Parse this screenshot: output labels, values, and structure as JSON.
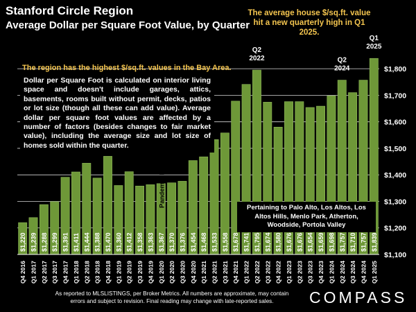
{
  "header": {
    "title": "Stanford Circle Region",
    "subtitle": "Average Dollar per Square Foot Value, by Quarter"
  },
  "notes": {
    "top_right": "The average house $/sq.ft. value hit a new quarterly high in Q1 2025.",
    "region_highlight": "The region has the highest $/sq.ft. values in the Bay Area.",
    "description": "Dollar per Square Foot is calculated on interior living space and doesn't include garages, attics, basements, rooms built without permit, decks, patios or lot size (though all these can add value). Average dollar per square foot values are affected by a number of factors (besides changes to fair market value), including the average size and lot size of homes sold within the quarter.",
    "inset": "Pertaining to Palo Alto, Los Altos, Los Altos Hills, Menlo Park, Atherton, Woodside, Portola Valley",
    "footer": "As reported to MLSLISTINGS, per Broker Metrics. All numbers are approximate, may contain errors and subject to revision. Final reading may change with late-reported sales.",
    "logo": "COMPASS"
  },
  "colors": {
    "background": "#000000",
    "bar": "#6e9838",
    "bar_edge": "#8fb85a",
    "highlight_text": "#f4c54f",
    "grid": "#ffffff"
  },
  "chart_data": {
    "type": "bar",
    "title": "Average Dollar per Square Foot Value, by Quarter",
    "xlabel": "",
    "ylabel": "",
    "ylim": [
      1100,
      1850
    ],
    "yticks": [
      1100,
      1200,
      1300,
      1400,
      1500,
      1600,
      1700,
      1800
    ],
    "ytick_labels": [
      "$1,100",
      "$1,200",
      "$1,300",
      "$1,400",
      "$1,500",
      "$1,600",
      "$1,700",
      "$1,800"
    ],
    "categories": [
      "Q4 2016",
      "Q1 2017",
      "Q2 2017",
      "Q3 2017",
      "Q4 2017",
      "Q1 2018",
      "Q2 2018",
      "Q3 2018",
      "Q4 2018",
      "Q1 2019",
      "Q2 2019",
      "Q3 2019",
      "Q4 2019",
      "Q1 2020",
      "Q2 2020",
      "Q3 2020",
      "Q4 2020",
      "Q1 2021",
      "Q2 2021",
      "Q3 2021",
      "Q4 2021",
      "Q1 2022",
      "Q2 2022",
      "Q3 2022",
      "Q4 2022",
      "Q1 2023",
      "Q2 2023",
      "Q3 2023",
      "Q4 2023",
      "Q1 2024",
      "Q2 2024",
      "Q3 2024",
      "Q4 2024",
      "Q1 2025"
    ],
    "values": [
      1220,
      1239,
      1288,
      1299,
      1391,
      1411,
      1444,
      1388,
      1470,
      1360,
      1412,
      1358,
      1363,
      1367,
      1370,
      1376,
      1454,
      1468,
      1533,
      1558,
      1678,
      1741,
      1795,
      1674,
      1580,
      1676,
      1676,
      1654,
      1659,
      1698,
      1757,
      1710,
      1757,
      1839
    ],
    "value_labels": [
      "$1,220",
      "$1,239",
      "$1,288",
      "$1,299",
      "$1,391",
      "$1,411",
      "$1,444",
      "$1,388",
      "$1,470",
      "$1,360",
      "$1,412",
      "$1,358",
      "$1,363",
      "$1,367",
      "$1,370",
      "$1,376",
      "$1,454",
      "$1,468",
      "$1,533",
      "$1,558",
      "$1,678",
      "$1,741",
      "$1,795",
      "$1,674",
      "$1,580",
      "$1,676",
      "$1,676",
      "$1,654",
      "$1,659",
      "$1,698",
      "$1,757",
      "$1,710",
      "$1,757",
      "$1,839"
    ],
    "grid": true,
    "y_axis_position": "right",
    "annotations": [
      {
        "category": "Q2 2022",
        "text": "Q2 2022"
      },
      {
        "category": "Q2 2024",
        "text": "Q2 2024"
      },
      {
        "category": "Q1 2025",
        "text": "Q1 2025"
      },
      {
        "category": "Q1 2020",
        "text": "Pandemic hits"
      }
    ]
  }
}
